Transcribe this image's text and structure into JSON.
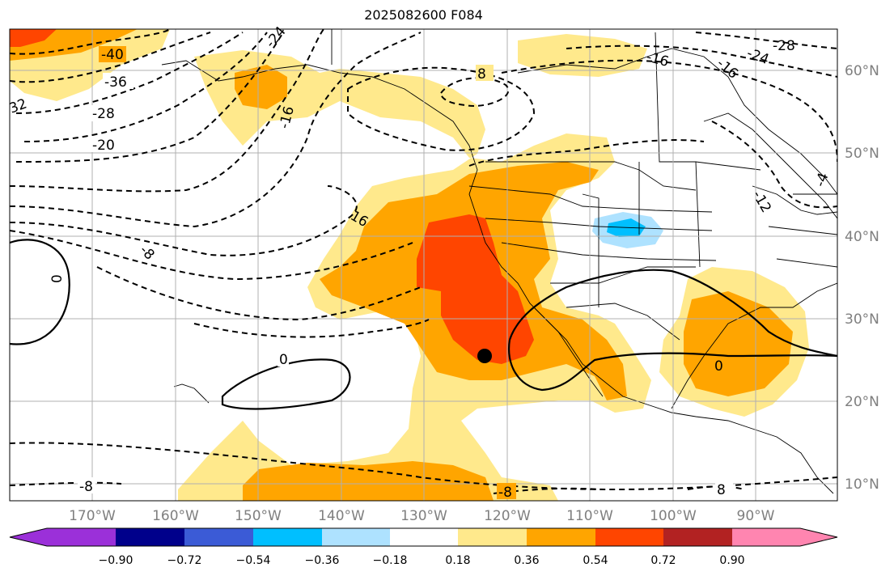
{
  "title": "2025082600 F084",
  "longitude_labels": [
    "170°W",
    "160°W",
    "150°W",
    "140°W",
    "130°W",
    "120°W",
    "110°W",
    "100°W",
    "90°W"
  ],
  "latitude_labels": [
    "60°N",
    "50°N",
    "40°N",
    "30°N",
    "20°N",
    "10°N"
  ],
  "contour_labels": [
    "-40",
    "-36",
    "32",
    "-28",
    "-20",
    "-8",
    "0",
    "0",
    "-8",
    "-8",
    "8",
    "-16",
    "16",
    "-24",
    "-28",
    "-24",
    "-16",
    "0",
    "8",
    "-16",
    "-12",
    "-4"
  ],
  "colorbar": {
    "ticks": [
      "−0.90",
      "−0.72",
      "−0.54",
      "−0.36",
      "−0.18",
      "0.18",
      "0.36",
      "0.54",
      "0.72",
      "0.90"
    ],
    "colors": [
      "#9b30d9",
      "#00008b",
      "#3b5bd6",
      "#00bfff",
      "#aee2ff",
      "#ffffff",
      "#ffe98c",
      "#ffa500",
      "#ff4500",
      "#b22222",
      "#ff85b0"
    ]
  },
  "marker": "forecast-point-dot"
}
